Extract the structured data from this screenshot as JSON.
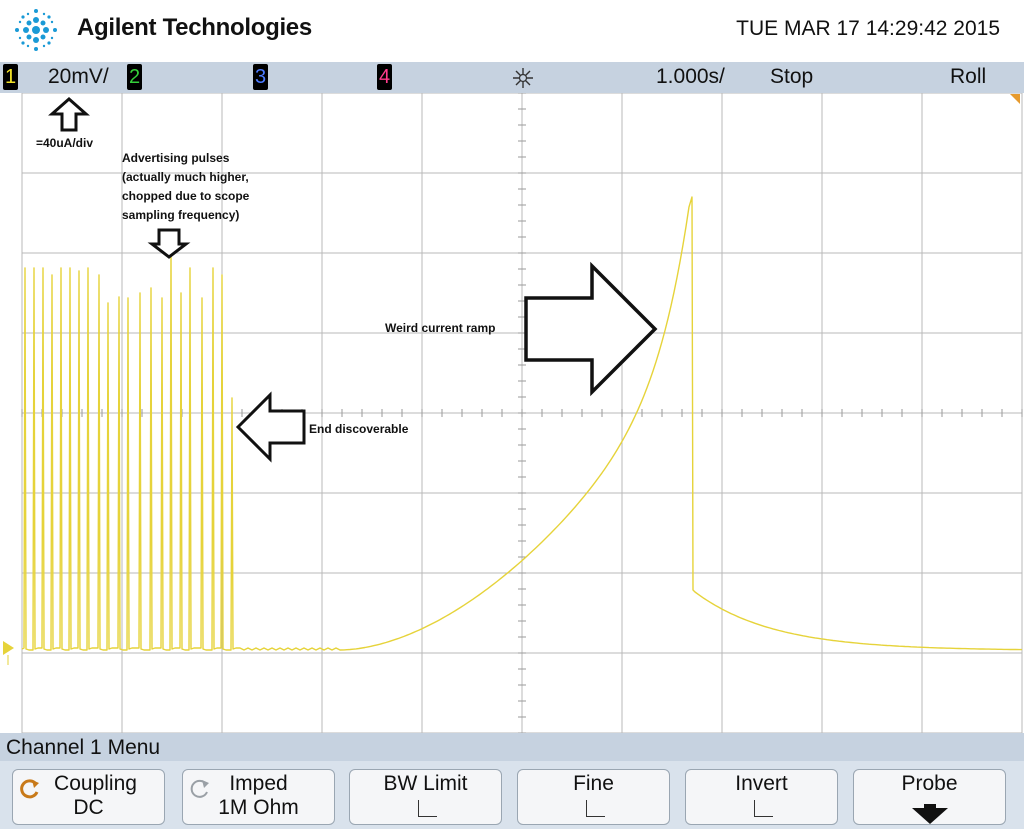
{
  "header": {
    "brand": "Agilent Technologies",
    "datetime": "TUE MAR 17 14:29:42 2015"
  },
  "status_bar": {
    "channels": [
      "1",
      "2",
      "3",
      "4"
    ],
    "ch1_scale": "20mV/",
    "timebase": "1.000s/",
    "run_state": "Stop",
    "mode": "Roll",
    "channel_colors": {
      "1": "#f2e227",
      "2": "#35d03a",
      "3": "#4c7bff",
      "4": "#ff3c8c"
    }
  },
  "trace": {
    "color": "#e6d33a",
    "ground_marker": "1"
  },
  "annotations": {
    "scale_note": "=40uA/div",
    "advertising_line1": "Advertising pulses",
    "advertising_line2": "(actually much higher,",
    "advertising_line3": "chopped due to scope",
    "advertising_line4": "sampling frequency)",
    "end_discoverable": "End discoverable",
    "weird_ramp": "Weird current ramp"
  },
  "menu": {
    "title": "Channel 1  Menu",
    "softkeys": [
      {
        "label": "Coupling",
        "value": "DC"
      },
      {
        "label": "Imped",
        "value": "1M Ohm"
      },
      {
        "label": "BW Limit",
        "value": ""
      },
      {
        "label": "Fine",
        "value": ""
      },
      {
        "label": "Invert",
        "value": ""
      },
      {
        "label": "Probe",
        "value": ""
      }
    ]
  }
}
